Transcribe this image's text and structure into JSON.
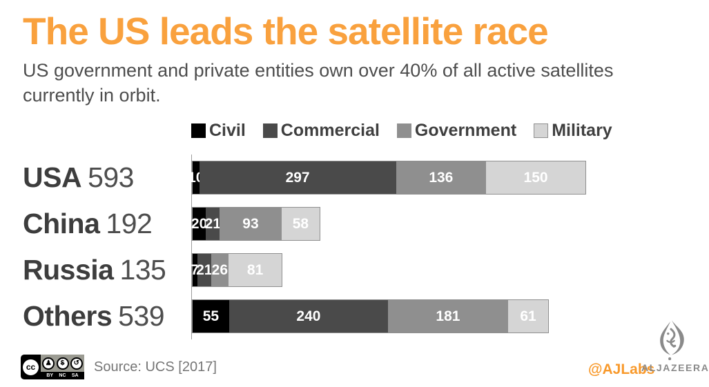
{
  "header": {
    "title": "The US leads the satellite race",
    "subtitle": "US government and private entities own over 40% of all active satellites currently in orbit."
  },
  "chart_data": {
    "type": "bar",
    "variant": "horizontal-stacked",
    "categories": [
      "USA",
      "China",
      "Russia",
      "Others"
    ],
    "totals": [
      593,
      192,
      135,
      539
    ],
    "series": [
      {
        "name": "Civil",
        "color": "#000000",
        "values": [
          10,
          20,
          7,
          55
        ]
      },
      {
        "name": "Commercial",
        "color": "#4a4a4a",
        "values": [
          297,
          21,
          21,
          240
        ]
      },
      {
        "name": "Government",
        "color": "#8f8f8f",
        "values": [
          136,
          93,
          26,
          181
        ]
      },
      {
        "name": "Military",
        "color": "#d5d5d5",
        "values": [
          150,
          58,
          81,
          61
        ]
      }
    ],
    "x_max": 593,
    "legend_position": "top",
    "value_labels": "inside-white",
    "grid": false
  },
  "footer": {
    "source": "Source: UCS [2017]",
    "handle": "@AJLabs",
    "brand_wordmark": "ALJAZEERA",
    "license": {
      "label": "cc",
      "terms": [
        "BY",
        "NC",
        "SA"
      ],
      "icons": [
        "person",
        "no-dollar",
        "share-alike"
      ]
    }
  },
  "colors": {
    "title_orange": "#f9a13e",
    "handle_orange": "#f8992b",
    "subtitle_gray": "#4d4d4d",
    "label_dark": "#3d3d3d",
    "axis_gray": "#9a9a9a",
    "bar_border": "#8f8f8f",
    "brand_gray": "#8a8a8a",
    "source_gray": "#757575",
    "background": "#ffffff"
  }
}
